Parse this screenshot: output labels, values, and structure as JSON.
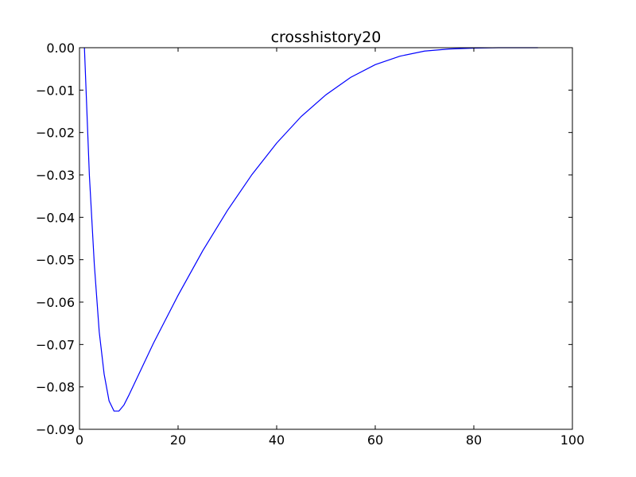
{
  "chart_data": {
    "type": "line",
    "title": "crosshistory20",
    "xlabel": "",
    "ylabel": "",
    "xlim": [
      0,
      100
    ],
    "ylim": [
      -0.09,
      0.0
    ],
    "x_ticks": [
      "0",
      "20",
      "40",
      "60",
      "80",
      "100"
    ],
    "y_ticks": [
      "0.00",
      "−0.01",
      "−0.02",
      "−0.03",
      "−0.04",
      "−0.05",
      "−0.06",
      "−0.07",
      "−0.08",
      "−0.09"
    ],
    "grid": false,
    "series": [
      {
        "color": "#0000ff",
        "x": [
          1,
          2,
          3,
          4,
          5,
          6,
          7,
          8,
          9,
          10,
          15,
          20,
          25,
          30,
          35,
          40,
          45,
          50,
          55,
          60,
          65,
          70,
          75,
          80,
          85,
          90,
          93
        ],
        "y": [
          0.0,
          -0.03,
          -0.051,
          -0.067,
          -0.077,
          -0.0833,
          -0.0857,
          -0.0857,
          -0.0843,
          -0.082,
          -0.0697,
          -0.0584,
          -0.0479,
          -0.0384,
          -0.0299,
          -0.0225,
          -0.0162,
          -0.0111,
          -0.007,
          -0.004,
          -0.002,
          -0.0008,
          -0.0003,
          -0.0001,
          0.0,
          0.0,
          0.0
        ]
      }
    ]
  }
}
